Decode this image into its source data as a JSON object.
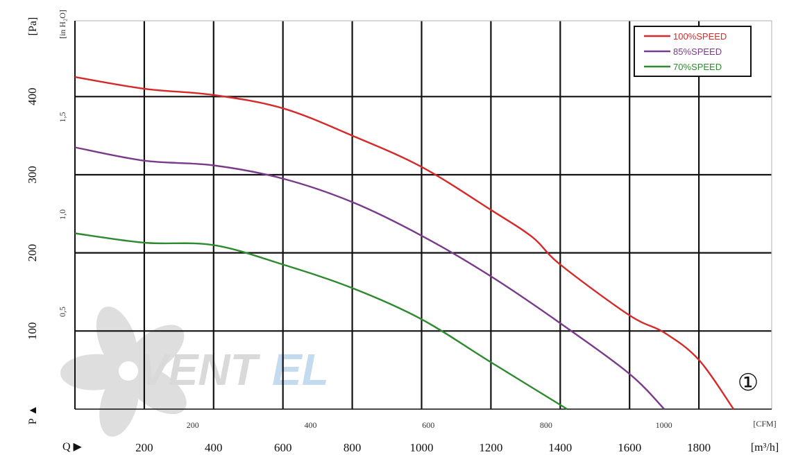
{
  "chart_data": {
    "type": "line",
    "y_unit_pa": "[Pa]",
    "y_unit_inh2o": "[in H₂O]",
    "x_unit_m3h": "[m³/h]",
    "x_unit_cfm": "[CFM]",
    "p_marker": "P ▲",
    "q_marker": "Q ▶",
    "x_ticks_m3h": [
      200,
      400,
      600,
      800,
      1000,
      1200,
      1400,
      1600,
      1800
    ],
    "x_ticks_cfm": [
      200,
      400,
      600,
      800,
      1000
    ],
    "y_ticks_pa": [
      100,
      200,
      300,
      400
    ],
    "y_ticks_inh2o": [
      0.5,
      1.0,
      1.5
    ],
    "y_ticks_inh2o_labels": [
      "0,5",
      "1,0",
      "1,5"
    ],
    "xlim": [
      0,
      2010
    ],
    "ylim": [
      0,
      497
    ],
    "grid": true,
    "legend_position": "top-right",
    "curve_label": "①",
    "watermark": "VENTEL",
    "series": [
      {
        "name": "100%SPEED",
        "color": "#d62a2a",
        "x": [
          0,
          200,
          400,
          600,
          800,
          1000,
          1200,
          1320,
          1400,
          1600,
          1700,
          1800,
          1900
        ],
        "y": [
          425,
          410,
          402,
          385,
          350,
          310,
          255,
          220,
          185,
          120,
          98,
          63,
          0
        ]
      },
      {
        "name": "85%SPEED",
        "color": "#7a3a8a",
        "x": [
          0,
          200,
          400,
          600,
          800,
          1000,
          1200,
          1400,
          1600,
          1700
        ],
        "y": [
          335,
          318,
          312,
          295,
          265,
          222,
          170,
          110,
          45,
          0
        ]
      },
      {
        "name": "70%SPEED",
        "color": "#2e8a2e",
        "x": [
          0,
          200,
          400,
          600,
          800,
          1000,
          1200,
          1420
        ],
        "y": [
          225,
          213,
          210,
          185,
          155,
          115,
          60,
          0
        ]
      }
    ]
  }
}
